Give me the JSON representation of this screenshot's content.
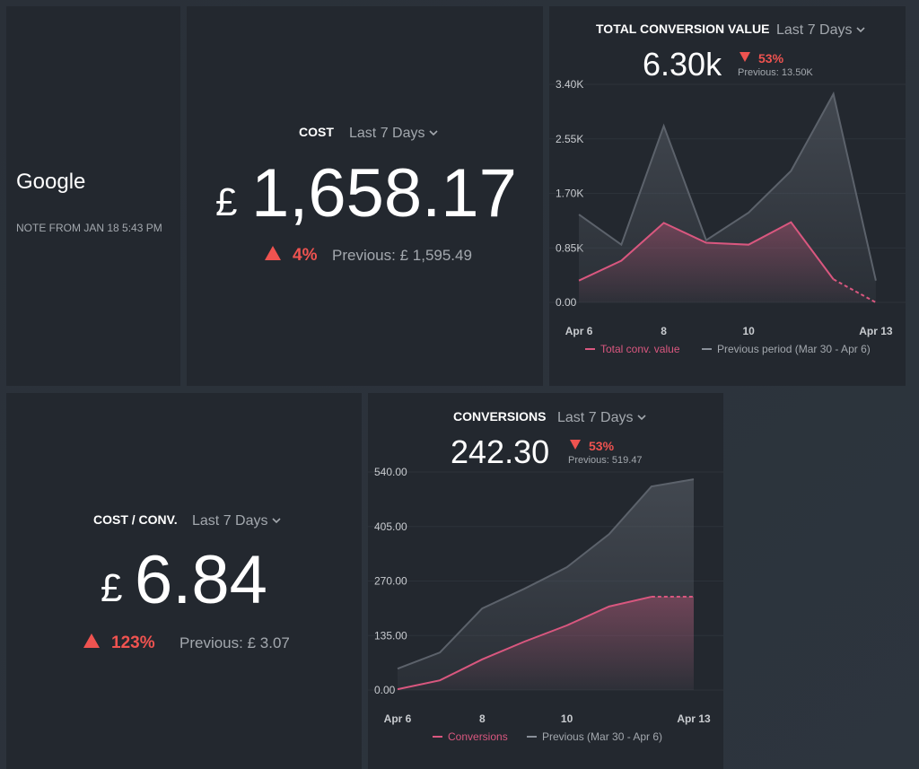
{
  "note": {
    "title": "Google",
    "text": "NOTE FROM JAN 18 5:43 PM"
  },
  "cost": {
    "title": "COST",
    "period": "Last 7 Days",
    "currency": "£",
    "value": "1,658.17",
    "change": "4%",
    "previous": "Previous: £ 1,595.49"
  },
  "cost_per_conv": {
    "title": "COST / CONV.",
    "period": "Last 7 Days",
    "currency": "£",
    "value": "6.84",
    "change": "123%",
    "previous": "Previous: £ 3.07"
  },
  "chart_data": [
    {
      "type": "area",
      "title": "TOTAL CONVERSION VALUE",
      "period": "Last 7 Days",
      "kpi": "6.30k",
      "change": "53%",
      "previous": "Previous: 13.50K",
      "x": [
        6,
        7,
        8,
        9,
        10,
        11,
        12,
        13
      ],
      "xlim": [
        5.3,
        13.7
      ],
      "xticks": [
        {
          "value": 6,
          "label": "Apr 6"
        },
        8,
        10,
        {
          "value": 13,
          "label": "Apr 13"
        }
      ],
      "ylim": [
        0,
        3.4
      ],
      "yticks": [
        {
          "value": 0,
          "label": "0.00"
        },
        {
          "value": 0.85,
          "label": "0.85K"
        },
        {
          "value": 1.7,
          "label": "1.70K"
        },
        {
          "value": 2.55,
          "label": "2.55K"
        },
        {
          "value": 3.4,
          "label": "3.40K"
        }
      ],
      "grid": true,
      "series": [
        {
          "name": "Total conv. value",
          "color": "#d9577f",
          "dashed_last_segment": true,
          "values": [
            0.34,
            0.65,
            1.24,
            0.93,
            0.9,
            1.25,
            0.36,
            0.0
          ]
        },
        {
          "name": "Previous period (Mar 30 - Apr 6)",
          "color": "#5c626b",
          "dashed_last_segment": false,
          "values": [
            1.37,
            0.9,
            2.75,
            0.97,
            1.4,
            2.05,
            3.25,
            0.34
          ]
        }
      ]
    },
    {
      "type": "area",
      "title": "CONVERSIONS",
      "period": "Last 7 Days",
      "kpi": "242.30",
      "change": "53%",
      "previous": "Previous: 519.47",
      "x": [
        6,
        7,
        8,
        9,
        10,
        11,
        12,
        13
      ],
      "xlim": [
        5.3,
        13.7
      ],
      "xticks": [
        {
          "value": 6,
          "label": "Apr 6"
        },
        8,
        10,
        {
          "value": 13,
          "label": "Apr 13"
        }
      ],
      "ylim": [
        0,
        540
      ],
      "yticks": [
        {
          "value": 0,
          "label": "0.00"
        },
        {
          "value": 135,
          "label": "135.00"
        },
        {
          "value": 270,
          "label": "270.00"
        },
        {
          "value": 405,
          "label": "405.00"
        },
        {
          "value": 540,
          "label": "540.00"
        }
      ],
      "grid": true,
      "series": [
        {
          "name": "Conversions",
          "color": "#d9577f",
          "dashed_last_segment": true,
          "values": [
            2,
            24,
            76,
            120,
            160,
            207,
            231,
            231
          ]
        },
        {
          "name": "Previous (Mar 30 - Apr 6)",
          "color": "#5c626b",
          "dashed_last_segment": false,
          "values": [
            53,
            93,
            202,
            251,
            304,
            386,
            504,
            522
          ]
        }
      ]
    }
  ]
}
